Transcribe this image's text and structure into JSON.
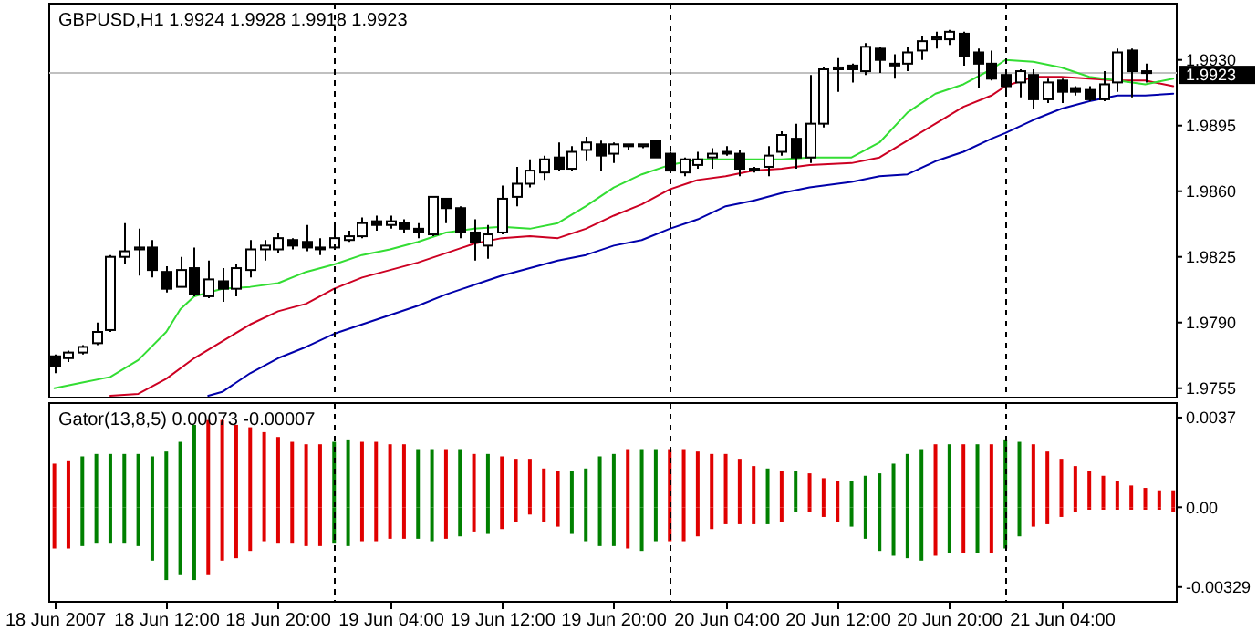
{
  "chart_data": [
    {
      "type": "candlestick",
      "title": "GBPUSD,H1 1.9924 1.9928 1.9918 1.9923",
      "x": [
        "2007-06-18T04:00",
        "2007-06-18T05:00",
        "2007-06-18T06:00",
        "2007-06-18T07:00",
        "2007-06-18T08:00",
        "2007-06-18T09:00",
        "2007-06-18T10:00",
        "2007-06-18T11:00",
        "2007-06-18T12:00",
        "2007-06-18T13:00",
        "2007-06-18T14:00",
        "2007-06-18T15:00",
        "2007-06-18T16:00",
        "2007-06-18T17:00",
        "2007-06-18T18:00",
        "2007-06-18T19:00",
        "2007-06-18T20:00",
        "2007-06-18T21:00",
        "2007-06-18T22:00",
        "2007-06-18T23:00",
        "2007-06-19T00:00",
        "2007-06-19T01:00",
        "2007-06-19T02:00",
        "2007-06-19T03:00",
        "2007-06-19T04:00",
        "2007-06-19T05:00",
        "2007-06-19T06:00",
        "2007-06-19T07:00",
        "2007-06-19T08:00",
        "2007-06-19T09:00",
        "2007-06-19T10:00",
        "2007-06-19T11:00",
        "2007-06-19T12:00",
        "2007-06-19T13:00",
        "2007-06-19T14:00",
        "2007-06-19T15:00",
        "2007-06-19T16:00",
        "2007-06-19T17:00",
        "2007-06-19T18:00",
        "2007-06-19T19:00",
        "2007-06-19T20:00",
        "2007-06-19T21:00",
        "2007-06-19T22:00",
        "2007-06-19T23:00",
        "2007-06-20T00:00",
        "2007-06-20T01:00",
        "2007-06-20T02:00",
        "2007-06-20T03:00",
        "2007-06-20T04:00",
        "2007-06-20T05:00",
        "2007-06-20T06:00",
        "2007-06-20T07:00",
        "2007-06-20T08:00",
        "2007-06-20T09:00",
        "2007-06-20T10:00",
        "2007-06-20T11:00",
        "2007-06-20T12:00",
        "2007-06-20T13:00",
        "2007-06-20T14:00",
        "2007-06-20T15:00",
        "2007-06-20T16:00",
        "2007-06-20T17:00",
        "2007-06-20T18:00",
        "2007-06-20T19:00",
        "2007-06-20T20:00",
        "2007-06-20T21:00",
        "2007-06-20T22:00",
        "2007-06-20T23:00",
        "2007-06-21T00:00",
        "2007-06-21T01:00",
        "2007-06-21T02:00",
        "2007-06-21T03:00",
        "2007-06-21T04:00",
        "2007-06-21T05:00",
        "2007-06-21T06:00",
        "2007-06-21T07:00",
        "2007-06-21T08:00",
        "2007-06-21T09:00",
        "2007-06-21T10:00"
      ],
      "ohlc": [
        [
          1.9772,
          1.9773,
          1.9763,
          1.9767
        ],
        [
          1.9771,
          1.9775,
          1.9769,
          1.9774
        ],
        [
          1.9774,
          1.9778,
          1.9773,
          1.9777
        ],
        [
          1.9779,
          1.979,
          1.9778,
          1.9785
        ],
        [
          1.9786,
          1.9826,
          1.9785,
          1.9825
        ],
        [
          1.9825,
          1.9843,
          1.9821,
          1.9828
        ],
        [
          1.9829,
          1.984,
          1.9815,
          1.983
        ],
        [
          1.983,
          1.9834,
          1.9814,
          1.9818
        ],
        [
          1.9817,
          1.982,
          1.9806,
          1.9808
        ],
        [
          1.9809,
          1.9825,
          1.9809,
          1.9818
        ],
        [
          1.9819,
          1.983,
          1.9804,
          1.9805
        ],
        [
          1.9804,
          1.9823,
          1.9803,
          1.9813
        ],
        [
          1.9812,
          1.9819,
          1.9801,
          1.9808
        ],
        [
          1.9808,
          1.9821,
          1.9804,
          1.9819
        ],
        [
          1.9818,
          1.9834,
          1.9814,
          1.9829
        ],
        [
          1.9829,
          1.9834,
          1.9823,
          1.9831
        ],
        [
          1.9829,
          1.9838,
          1.9827,
          1.9835
        ],
        [
          1.9834,
          1.9835,
          1.9829,
          1.9831
        ],
        [
          1.9833,
          1.9842,
          1.9828,
          1.983
        ],
        [
          1.983,
          1.9835,
          1.9826,
          1.983
        ],
        [
          1.983,
          1.9843,
          1.9829,
          1.9835
        ],
        [
          1.9834,
          1.9839,
          1.9833,
          1.9836
        ],
        [
          1.9836,
          1.9846,
          1.9835,
          1.9843
        ],
        [
          1.9844,
          1.9847,
          1.9839,
          1.9842
        ],
        [
          1.9842,
          1.9847,
          1.984,
          1.9844
        ],
        [
          1.9843,
          1.9845,
          1.9838,
          1.984
        ],
        [
          1.984,
          1.9843,
          1.9835,
          1.9838
        ],
        [
          1.9837,
          1.9857,
          1.9836,
          1.9857
        ],
        [
          1.9856,
          1.9856,
          1.9843,
          1.9851
        ],
        [
          1.9851,
          1.9852,
          1.9835,
          1.9838
        ],
        [
          1.9838,
          1.9845,
          1.9823,
          1.9833
        ],
        [
          1.9831,
          1.9842,
          1.9824,
          1.9837
        ],
        [
          1.9838,
          1.9863,
          1.9837,
          1.9856
        ],
        [
          1.9857,
          1.9873,
          1.9852,
          1.9864
        ],
        [
          1.9864,
          1.9877,
          1.9862,
          1.9871
        ],
        [
          1.987,
          1.9879,
          1.9866,
          1.9877
        ],
        [
          1.9878,
          1.9886,
          1.9871,
          1.9872
        ],
        [
          1.9872,
          1.9884,
          1.9871,
          1.9881
        ],
        [
          1.9882,
          1.9889,
          1.9876,
          1.9886
        ],
        [
          1.9885,
          1.9887,
          1.9871,
          1.9879
        ],
        [
          1.988,
          1.9886,
          1.9875,
          1.9885
        ],
        [
          1.9885,
          1.9885,
          1.9882,
          1.9884
        ],
        [
          1.9884,
          1.9885,
          1.9883,
          1.9885
        ],
        [
          1.9887,
          1.9887,
          1.9878,
          1.9878
        ],
        [
          1.988,
          1.9881,
          1.987,
          1.9871
        ],
        [
          1.987,
          1.9878,
          1.9868,
          1.9877
        ],
        [
          1.9874,
          1.9881,
          1.9872,
          1.9877
        ],
        [
          1.9878,
          1.9883,
          1.9872,
          1.988
        ],
        [
          1.9881,
          1.9884,
          1.9879,
          1.9881
        ],
        [
          1.988,
          1.9882,
          1.9868,
          1.9872
        ],
        [
          1.9872,
          1.9873,
          1.987,
          1.9872
        ],
        [
          1.9873,
          1.9884,
          1.9868,
          1.9879
        ],
        [
          1.9881,
          1.9892,
          1.9879,
          1.989
        ],
        [
          1.9888,
          1.9896,
          1.9872,
          1.9878
        ],
        [
          1.9878,
          1.9922,
          1.9875,
          1.9896
        ],
        [
          1.9896,
          1.9926,
          1.9894,
          1.9925
        ],
        [
          1.9925,
          1.9931,
          1.9913,
          1.9926
        ],
        [
          1.9927,
          1.9928,
          1.9918,
          1.9925
        ],
        [
          1.9924,
          1.9939,
          1.9922,
          1.9937
        ],
        [
          1.9936,
          1.9937,
          1.9923,
          1.993
        ],
        [
          1.9928,
          1.9933,
          1.992,
          1.9928
        ],
        [
          1.9928,
          1.9937,
          1.9924,
          1.9934
        ],
        [
          1.9935,
          1.9943,
          1.993,
          1.994
        ],
        [
          1.9941,
          1.9945,
          1.9936,
          1.9942
        ],
        [
          1.9941,
          1.9946,
          1.9938,
          1.9945
        ],
        [
          1.9944,
          1.9945,
          1.9927,
          1.9932
        ],
        [
          1.9934,
          1.9936,
          1.9915,
          1.9928
        ],
        [
          1.9928,
          1.9935,
          1.9919,
          1.992
        ],
        [
          1.9922,
          1.9925,
          1.9911,
          1.9916
        ],
        [
          1.9918,
          1.9925,
          1.991,
          1.9924
        ],
        [
          1.9922,
          1.9925,
          1.9904,
          1.9909
        ],
        [
          1.9909,
          1.992,
          1.9907,
          1.9918
        ],
        [
          1.9919,
          1.992,
          1.9907,
          1.9913
        ],
        [
          1.9915,
          1.9916,
          1.9911,
          1.9913
        ],
        [
          1.9914,
          1.9916,
          1.9908,
          1.9909
        ],
        [
          1.9909,
          1.9924,
          1.9908,
          1.9917
        ],
        [
          1.9918,
          1.9936,
          1.9913,
          1.9934
        ],
        [
          1.9935,
          1.9936,
          1.991,
          1.9924
        ],
        [
          1.9924,
          1.9928,
          1.9918,
          1.9923
        ]
      ],
      "series": [
        {
          "type": "line",
          "color": "#0000aa",
          "x": [
            "2007-06-18T15:00",
            "2007-06-18T16:00",
            "2007-06-18T18:00",
            "2007-06-18T20:00",
            "2007-06-18T22:00",
            "2007-06-19T00:00",
            "2007-06-19T02:00",
            "2007-06-19T04:00",
            "2007-06-19T06:00",
            "2007-06-19T08:00",
            "2007-06-19T10:00",
            "2007-06-19T12:00",
            "2007-06-19T14:00",
            "2007-06-19T16:00",
            "2007-06-19T18:00",
            "2007-06-19T20:00",
            "2007-06-19T22:00",
            "2007-06-20T00:00",
            "2007-06-20T02:00",
            "2007-06-20T04:00",
            "2007-06-20T06:00",
            "2007-06-20T08:00",
            "2007-06-20T10:00",
            "2007-06-20T13:00",
            "2007-06-20T15:00",
            "2007-06-20T17:00",
            "2007-06-20T19:00",
            "2007-06-20T21:00",
            "2007-06-20T23:00",
            "2007-06-21T00:00",
            "2007-06-21T02:00",
            "2007-06-21T04:00",
            "2007-06-21T06:00",
            "2007-06-21T08:00",
            "2007-06-21T10:00",
            "2007-06-21T12:00"
          ],
          "values": [
            1.9751,
            1.9753,
            1.9763,
            1.9771,
            1.9777,
            1.9784,
            1.9789,
            1.9794,
            1.9799,
            1.9805,
            1.981,
            1.9815,
            1.9819,
            1.9823,
            1.9826,
            1.9831,
            1.9834,
            1.984,
            1.9845,
            1.9852,
            1.9855,
            1.9859,
            1.9862,
            1.9865,
            1.9868,
            1.9869,
            1.9876,
            1.9881,
            1.9888,
            1.9891,
            1.9898,
            1.9904,
            1.9908,
            1.9911,
            1.9911,
            1.9912
          ]
        },
        {
          "type": "line",
          "color": "#cc0022",
          "x": [
            "2007-06-18T08:00",
            "2007-06-18T10:00",
            "2007-06-18T12:00",
            "2007-06-18T14:00",
            "2007-06-18T16:00",
            "2007-06-18T18:00",
            "2007-06-18T20:00",
            "2007-06-18T22:00",
            "2007-06-19T00:00",
            "2007-06-19T02:00",
            "2007-06-19T04:00",
            "2007-06-19T06:00",
            "2007-06-19T08:00",
            "2007-06-19T10:00",
            "2007-06-19T12:00",
            "2007-06-19T14:00",
            "2007-06-19T16:00",
            "2007-06-19T18:00",
            "2007-06-19T20:00",
            "2007-06-19T22:00",
            "2007-06-20T00:00",
            "2007-06-20T02:00",
            "2007-06-20T04:00",
            "2007-06-20T06:00",
            "2007-06-20T08:00",
            "2007-06-20T10:00",
            "2007-06-20T13:00",
            "2007-06-20T15:00",
            "2007-06-20T17:00",
            "2007-06-20T19:00",
            "2007-06-20T21:00",
            "2007-06-20T23:00",
            "2007-06-21T00:00",
            "2007-06-21T02:00",
            "2007-06-21T04:00",
            "2007-06-21T06:00",
            "2007-06-21T08:00",
            "2007-06-21T10:00",
            "2007-06-21T12:00"
          ],
          "values": [
            1.9751,
            1.9752,
            1.976,
            1.9771,
            1.978,
            1.9789,
            1.9796,
            1.98,
            1.9808,
            1.9814,
            1.9818,
            1.9822,
            1.9827,
            1.9832,
            1.9835,
            1.9836,
            1.9835,
            1.984,
            1.9847,
            1.9853,
            1.9861,
            1.9866,
            1.9868,
            1.9871,
            1.9872,
            1.9874,
            1.9875,
            1.9878,
            1.9887,
            1.9896,
            1.9905,
            1.9911,
            1.9916,
            1.9921,
            1.9921,
            1.992,
            1.9919,
            1.9919,
            1.9916
          ]
        },
        {
          "type": "line",
          "color": "#33dd33",
          "x": [
            "2007-06-18T04:00",
            "2007-06-18T06:00",
            "2007-06-18T08:00",
            "2007-06-18T10:00",
            "2007-06-18T12:00",
            "2007-06-18T13:00",
            "2007-06-18T14:00",
            "2007-06-18T16:00",
            "2007-06-18T18:00",
            "2007-06-18T20:00",
            "2007-06-18T22:00",
            "2007-06-19T00:00",
            "2007-06-19T02:00",
            "2007-06-19T04:00",
            "2007-06-19T06:00",
            "2007-06-19T08:00",
            "2007-06-19T10:00",
            "2007-06-19T12:00",
            "2007-06-19T14:00",
            "2007-06-19T16:00",
            "2007-06-19T18:00",
            "2007-06-19T20:00",
            "2007-06-19T22:00",
            "2007-06-20T00:00",
            "2007-06-20T02:00",
            "2007-06-20T04:00",
            "2007-06-20T06:00",
            "2007-06-20T08:00",
            "2007-06-20T10:00",
            "2007-06-20T13:00",
            "2007-06-20T15:00",
            "2007-06-20T17:00",
            "2007-06-20T19:00",
            "2007-06-20T21:00",
            "2007-06-20T23:00",
            "2007-06-21T00:00",
            "2007-06-21T02:00",
            "2007-06-21T04:00",
            "2007-06-21T06:00",
            "2007-06-21T08:00",
            "2007-06-21T10:00",
            "2007-06-21T12:00"
          ],
          "values": [
            1.9755,
            1.9758,
            1.9761,
            1.977,
            1.9785,
            1.9797,
            1.9804,
            1.9808,
            1.9809,
            1.9811,
            1.9817,
            1.9821,
            1.9826,
            1.9829,
            1.9833,
            1.9838,
            1.984,
            1.9841,
            1.984,
            1.9843,
            1.9852,
            1.9862,
            1.9869,
            1.9874,
            1.9877,
            1.9877,
            1.9877,
            1.9877,
            1.9878,
            1.9878,
            1.9886,
            1.9902,
            1.9912,
            1.9917,
            1.9925,
            1.993,
            1.9929,
            1.9926,
            1.9921,
            1.9919,
            1.9917,
            1.992
          ]
        }
      ],
      "xlim": [
        "2007-06-18T03:38",
        "2007-06-21T12:15"
      ],
      "ylim": [
        1.975,
        1.996
      ],
      "yticks": [
        1.9755,
        {
          "value": 1.979,
          "label": "1.9790"
        },
        1.9825,
        {
          "value": 1.986,
          "label": "1.9860"
        },
        1.9895,
        {
          "value": 1.993,
          "label": "1.9930"
        }
      ],
      "tick_labels": "y",
      "ref_lines": [
        {
          "axis": "x",
          "value": "2007-06-19T00:00",
          "line_style": "dashed",
          "color": "#000000"
        },
        {
          "axis": "x",
          "value": "2007-06-20T00:00",
          "line_style": "dashed",
          "color": "#000000"
        },
        {
          "axis": "x",
          "value": "2007-06-21T00:00",
          "line_style": "dashed",
          "color": "#000000"
        },
        {
          "axis": "y",
          "value": 1.9923,
          "label": "1.9923",
          "color": "#c0c0c0"
        }
      ]
    },
    {
      "type": "bar",
      "title": "Gator(13,8,5) 0.00073 -0.00007",
      "stacked": true,
      "x": [
        "2007-06-18T04:00",
        "2007-06-18T05:00",
        "2007-06-18T06:00",
        "2007-06-18T07:00",
        "2007-06-18T08:00",
        "2007-06-18T09:00",
        "2007-06-18T10:00",
        "2007-06-18T11:00",
        "2007-06-18T12:00",
        "2007-06-18T13:00",
        "2007-06-18T14:00",
        "2007-06-18T15:00",
        "2007-06-18T16:00",
        "2007-06-18T17:00",
        "2007-06-18T18:00",
        "2007-06-18T19:00",
        "2007-06-18T20:00",
        "2007-06-18T21:00",
        "2007-06-18T22:00",
        "2007-06-18T23:00",
        "2007-06-19T00:00",
        "2007-06-19T01:00",
        "2007-06-19T02:00",
        "2007-06-19T03:00",
        "2007-06-19T04:00",
        "2007-06-19T05:00",
        "2007-06-19T06:00",
        "2007-06-19T07:00",
        "2007-06-19T08:00",
        "2007-06-19T09:00",
        "2007-06-19T10:00",
        "2007-06-19T11:00",
        "2007-06-19T12:00",
        "2007-06-19T13:00",
        "2007-06-19T14:00",
        "2007-06-19T15:00",
        "2007-06-19T16:00",
        "2007-06-19T17:00",
        "2007-06-19T18:00",
        "2007-06-19T19:00",
        "2007-06-19T20:00",
        "2007-06-19T21:00",
        "2007-06-19T22:00",
        "2007-06-19T23:00",
        "2007-06-20T00:00",
        "2007-06-20T01:00",
        "2007-06-20T02:00",
        "2007-06-20T03:00",
        "2007-06-20T04:00",
        "2007-06-20T05:00",
        "2007-06-20T06:00",
        "2007-06-20T07:00",
        "2007-06-20T08:00",
        "2007-06-20T09:00",
        "2007-06-20T10:00",
        "2007-06-20T11:00",
        "2007-06-20T12:00",
        "2007-06-20T13:00",
        "2007-06-20T14:00",
        "2007-06-20T15:00",
        "2007-06-20T16:00",
        "2007-06-20T17:00",
        "2007-06-20T18:00",
        "2007-06-20T19:00",
        "2007-06-20T20:00",
        "2007-06-20T21:00",
        "2007-06-20T22:00",
        "2007-06-20T23:00",
        "2007-06-21T00:00",
        "2007-06-21T01:00",
        "2007-06-21T02:00",
        "2007-06-21T03:00",
        "2007-06-21T04:00",
        "2007-06-21T05:00",
        "2007-06-21T06:00",
        "2007-06-21T07:00",
        "2007-06-21T08:00",
        "2007-06-21T09:00",
        "2007-06-21T10:00",
        "2007-06-21T11:00",
        "2007-06-21T12:00"
      ],
      "series": [
        {
          "values": [
            0.0018,
            0.0019,
            0.0021,
            0.0022,
            0.0022,
            0.0022,
            0.0022,
            0.0021,
            0.0023,
            0.0027,
            0.0034,
            0.0036,
            0.0036,
            0.0034,
            0.0033,
            0.0031,
            0.0029,
            0.0027,
            0.0026,
            0.0026,
            0.0027,
            0.0028,
            0.0027,
            0.0027,
            0.0026,
            0.0026,
            0.0024,
            0.0024,
            0.0024,
            0.0024,
            0.0022,
            0.0022,
            0.0021,
            0.002,
            0.002,
            0.0016,
            0.0015,
            0.0015,
            0.0016,
            0.0021,
            0.0022,
            0.0024,
            0.0024,
            0.0024,
            0.0024,
            0.0024,
            0.0023,
            0.0022,
            0.0022,
            0.002,
            0.0017,
            0.0016,
            0.0015,
            0.0015,
            0.0014,
            0.0012,
            0.0011,
            0.0011,
            0.0013,
            0.0014,
            0.0018,
            0.0022,
            0.0024,
            0.0026,
            0.0026,
            0.0026,
            0.0026,
            0.0026,
            0.0028,
            0.0027,
            0.0026,
            0.0023,
            0.002,
            0.0017,
            0.0015,
            0.0013,
            0.0011,
            0.0009,
            0.0008,
            0.0007,
            0.0007
          ],
          "colors": [
            "#e00000",
            "#e00000",
            "#008000",
            "#008000",
            "#008000",
            "#008000",
            "#008000",
            "#008000",
            "#008000",
            "#008000",
            "#008000",
            "#e00000",
            "#e00000",
            "#e00000",
            "#e00000",
            "#e00000",
            "#e00000",
            "#e00000",
            "#e00000",
            "#e00000",
            "#008000",
            "#008000",
            "#e00000",
            "#e00000",
            "#e00000",
            "#e00000",
            "#008000",
            "#008000",
            "#e00000",
            "#008000",
            "#e00000",
            "#008000",
            "#e00000",
            "#e00000",
            "#e00000",
            "#e00000",
            "#e00000",
            "#008000",
            "#008000",
            "#008000",
            "#008000",
            "#e00000",
            "#008000",
            "#008000",
            "#e00000",
            "#e00000",
            "#e00000",
            "#e00000",
            "#e00000",
            "#e00000",
            "#e00000",
            "#008000",
            "#e00000",
            "#008000",
            "#e00000",
            "#e00000",
            "#e00000",
            "#008000",
            "#008000",
            "#008000",
            "#008000",
            "#008000",
            "#008000",
            "#e00000",
            "#008000",
            "#e00000",
            "#008000",
            "#e00000",
            "#008000",
            "#008000",
            "#e00000",
            "#e00000",
            "#e00000",
            "#e00000",
            "#e00000",
            "#e00000",
            "#e00000",
            "#e00000",
            "#e00000",
            "#e00000",
            "#e00000"
          ]
        },
        {
          "values": [
            -0.0017,
            -0.0017,
            -0.0016,
            -0.0015,
            -0.0015,
            -0.0015,
            -0.0016,
            -0.0022,
            -0.003,
            -0.0028,
            -0.003,
            -0.0028,
            -0.0022,
            -0.0021,
            -0.0018,
            -0.0014,
            -0.0015,
            -0.0015,
            -0.0016,
            -0.0016,
            -0.0015,
            -0.0016,
            -0.0014,
            -0.0014,
            -0.0013,
            -0.0013,
            -0.0013,
            -0.0014,
            -0.0013,
            -0.0012,
            -0.001,
            -0.0011,
            -0.0009,
            -0.0006,
            -0.0003,
            -0.0006,
            -0.0008,
            -0.0011,
            -0.0014,
            -0.0016,
            -0.0016,
            -0.0017,
            -0.0018,
            -0.0014,
            -0.0014,
            -0.0014,
            -0.0012,
            -0.0009,
            -0.0007,
            -0.0007,
            -0.0007,
            -0.0007,
            -0.0006,
            -0.0002,
            -0.0002,
            -0.0004,
            -0.0006,
            -0.0008,
            -0.0013,
            -0.0018,
            -0.002,
            -0.0021,
            -0.0022,
            -0.002,
            -0.0019,
            -0.0019,
            -0.0019,
            -0.0019,
            -0.0017,
            -0.0012,
            -0.0008,
            -0.0007,
            -0.0004,
            -0.0002,
            -0.0001,
            -0.0001,
            -0.0001,
            -0.0001,
            -0.0001,
            -0.0001,
            -0.0002
          ],
          "colors": [
            "#e00000",
            "#e00000",
            "#008000",
            "#008000",
            "#008000",
            "#008000",
            "#008000",
            "#008000",
            "#008000",
            "#008000",
            "#008000",
            "#e00000",
            "#e00000",
            "#e00000",
            "#e00000",
            "#e00000",
            "#e00000",
            "#e00000",
            "#e00000",
            "#e00000",
            "#008000",
            "#008000",
            "#e00000",
            "#e00000",
            "#e00000",
            "#e00000",
            "#008000",
            "#008000",
            "#e00000",
            "#008000",
            "#e00000",
            "#008000",
            "#e00000",
            "#e00000",
            "#e00000",
            "#e00000",
            "#e00000",
            "#008000",
            "#008000",
            "#008000",
            "#008000",
            "#e00000",
            "#008000",
            "#008000",
            "#e00000",
            "#e00000",
            "#e00000",
            "#e00000",
            "#e00000",
            "#e00000",
            "#e00000",
            "#008000",
            "#e00000",
            "#008000",
            "#e00000",
            "#e00000",
            "#e00000",
            "#008000",
            "#008000",
            "#008000",
            "#008000",
            "#008000",
            "#008000",
            "#e00000",
            "#008000",
            "#e00000",
            "#008000",
            "#e00000",
            "#008000",
            "#008000",
            "#e00000",
            "#e00000",
            "#e00000",
            "#e00000",
            "#e00000",
            "#e00000",
            "#e00000",
            "#e00000",
            "#e00000",
            "#e00000",
            "#e00000"
          ]
        }
      ],
      "xlim": [
        "2007-06-18T03:38",
        "2007-06-21T12:15"
      ],
      "xticks": [
        {
          "value": "2007-06-18T04:00",
          "label": "18 Jun 2007"
        },
        {
          "value": "2007-06-18T12:00",
          "label": "18 Jun 12:00"
        },
        {
          "value": "2007-06-18T20:00",
          "label": "18 Jun 20:00"
        },
        {
          "value": "2007-06-19T04:00",
          "label": "19 Jun 04:00"
        },
        {
          "value": "2007-06-19T12:00",
          "label": "19 Jun 12:00"
        },
        {
          "value": "2007-06-19T20:00",
          "label": "19 Jun 20:00"
        },
        {
          "value": "2007-06-20T04:00",
          "label": "20 Jun 04:00"
        },
        {
          "value": "2007-06-20T12:00",
          "label": "20 Jun 12:00"
        },
        {
          "value": "2007-06-20T20:00",
          "label": "20 Jun 20:00"
        },
        {
          "value": "2007-06-21T04:00",
          "label": "21 Jun 04:00"
        }
      ],
      "ylim": [
        -0.0039,
        0.0043
      ],
      "yticks": [
        0.0037,
        {
          "value": 0,
          "label": "0.00"
        },
        -0.00329
      ],
      "ref_lines": [
        {
          "axis": "x",
          "value": "2007-06-19T00:00",
          "line_style": "dashed",
          "color": "#000000"
        },
        {
          "axis": "x",
          "value": "2007-06-20T00:00",
          "line_style": "dashed",
          "color": "#000000"
        },
        {
          "axis": "x",
          "value": "2007-06-21T00:00",
          "line_style": "dashed",
          "color": "#000000"
        }
      ]
    }
  ]
}
